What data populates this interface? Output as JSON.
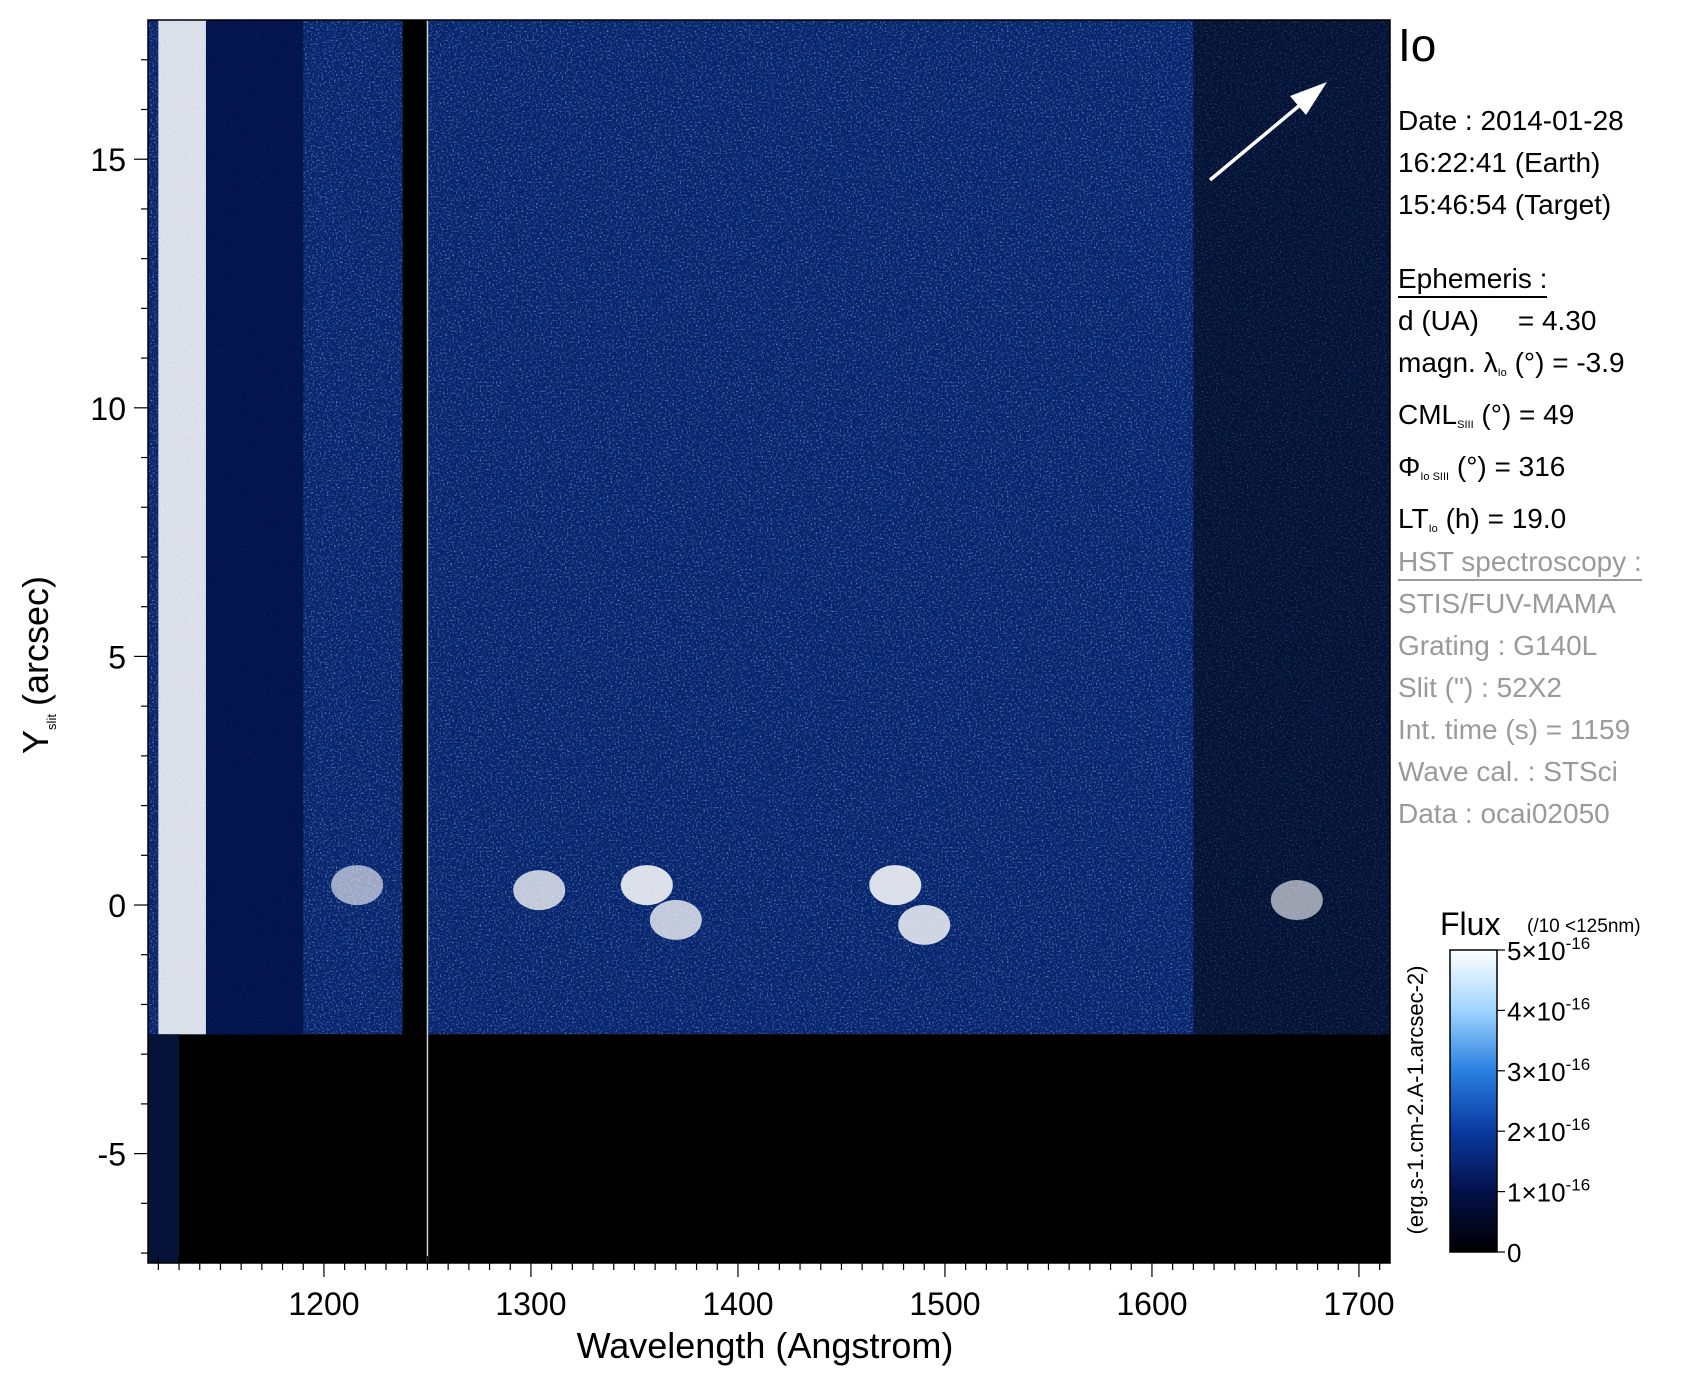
{
  "chart_data": {
    "type": "heatmap",
    "title": "",
    "xlabel": "Wavelength (Angstrom)",
    "ylabel_main": "Y",
    "ylabel_sub": "slit",
    "ylabel_unit": "(arcsec)",
    "xlim": [
      1115,
      1715
    ],
    "ylim": [
      -7.2,
      17.8
    ],
    "xticks": [
      1200,
      1300,
      1400,
      1500,
      1600,
      1700
    ],
    "xtick_labels": [
      "1200",
      "1300",
      "1400",
      "1500",
      "1600",
      "1700"
    ],
    "yticks": [
      -5,
      0,
      5,
      10,
      15
    ],
    "ytick_labels": [
      "-5",
      "0",
      "5",
      "10",
      "15"
    ],
    "lyman_alpha_cut_wavelength": 1250,
    "detector_edge_y": -2.6,
    "emission_blobs": [
      {
        "wavelength": 1304,
        "y": 0.3,
        "strength": 0.8
      },
      {
        "wavelength": 1356,
        "y": 0.4,
        "strength": 1.0
      },
      {
        "wavelength": 1370,
        "y": -0.3,
        "strength": 0.8
      },
      {
        "wavelength": 1476,
        "y": 0.4,
        "strength": 1.0
      },
      {
        "wavelength": 1490,
        "y": -0.4,
        "strength": 0.9
      },
      {
        "wavelength": 1216,
        "y": 0.4,
        "strength": 0.5
      },
      {
        "wavelength": 1670,
        "y": 0.1,
        "strength": 0.5
      }
    ],
    "colorbar": {
      "label": "Flux",
      "note": "(/10 <125nm)",
      "unit": "(erg.s-1.cm-2.A-1.arcsec-2)",
      "range": [
        0,
        5e-16
      ],
      "ticks": [
        0,
        1e-16,
        2e-16,
        3e-16,
        4e-16,
        5e-16
      ],
      "tick_mantissas": [
        "0",
        "1×10",
        "2×10",
        "3×10",
        "4×10",
        "5×10"
      ],
      "tick_exponents": [
        "",
        "-16",
        "-16",
        "-16",
        "-16",
        "-16"
      ],
      "colors": [
        "#000000",
        "#03114a",
        "#0a3aa0",
        "#2a7fe0",
        "#9fd4ff",
        "#ffffff"
      ]
    }
  },
  "panel": {
    "target": "Io",
    "date_line": "Date : 2014-01-28",
    "time_earth": "16:22:41 (Earth)",
    "time_target": "15:46:54 (Target)",
    "ephemeris_header": "Ephemeris :",
    "d_label": "d (UA)",
    "d_value": "= 4.30",
    "magn_label": "magn. λ",
    "magn_sub": "Io",
    "magn_value": "(°)  = -3.9",
    "cml_label": "CML",
    "cml_sub": "SIII",
    "cml_value": "(°) = 49",
    "phi_label": "Φ",
    "phi_sub": "Io SIII",
    "phi_value": "(°) = 316",
    "lt_label": "LT",
    "lt_sub": "Io",
    "lt_value": "(h) = 19.0",
    "hst_header": "HST spectroscopy :",
    "instrument": "STIS/FUV-MAMA",
    "grating": "Grating : G140L",
    "slit": "Slit (\") : 52X2",
    "int_time": "Int. time (s) = 1159",
    "wave_cal": "Wave cal. : STSci",
    "data_id": "Data : ocai02050"
  },
  "colors": {
    "text_grey": "#9a9a9a",
    "arrow": "#ffffff",
    "blue_mid": "#2a7fe0"
  }
}
